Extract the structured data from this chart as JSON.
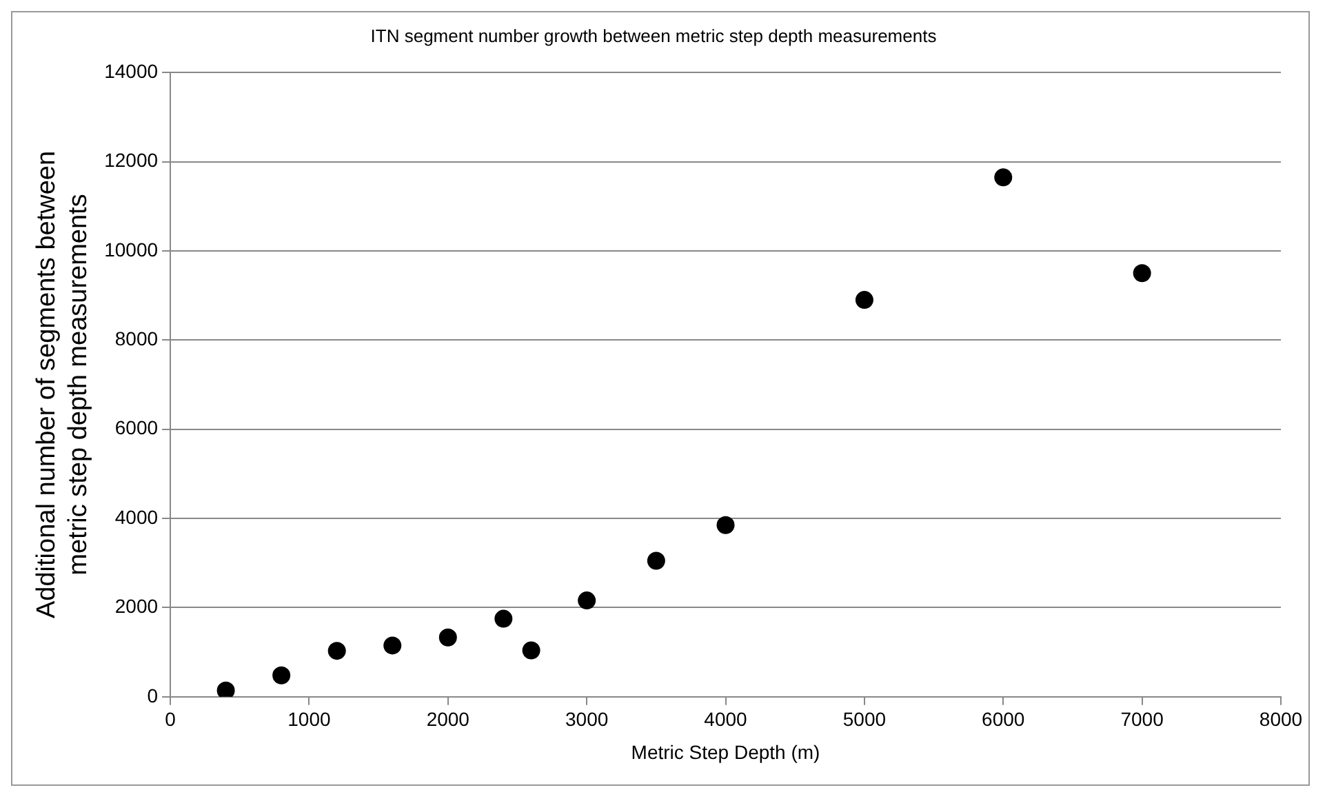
{
  "chart_data": {
    "type": "scatter",
    "title": "ITN segment number growth between metric step depth measurements",
    "xlabel": "Metric Step Depth (m)",
    "ylabel": "Additional number of segments between metric step depth measurements",
    "x": [
      400,
      800,
      1200,
      1600,
      2000,
      2400,
      2600,
      3000,
      3500,
      4000,
      5000,
      6000,
      7000
    ],
    "series": [
      {
        "color": "#000000",
        "values": [
          140,
          480,
          1030,
          1150,
          1330,
          1750,
          1040,
          2160,
          3050,
          3850,
          8900,
          11650,
          9500
        ]
      }
    ],
    "xlim": [
      0,
      8000
    ],
    "xticks": [
      0,
      1000,
      2000,
      3000,
      4000,
      5000,
      6000,
      7000,
      8000
    ],
    "ylim": [
      0,
      14000
    ],
    "yticks": [
      0,
      2000,
      4000,
      6000,
      8000,
      10000,
      12000,
      14000
    ],
    "grid": "y",
    "marker": "circle",
    "legend": false
  }
}
